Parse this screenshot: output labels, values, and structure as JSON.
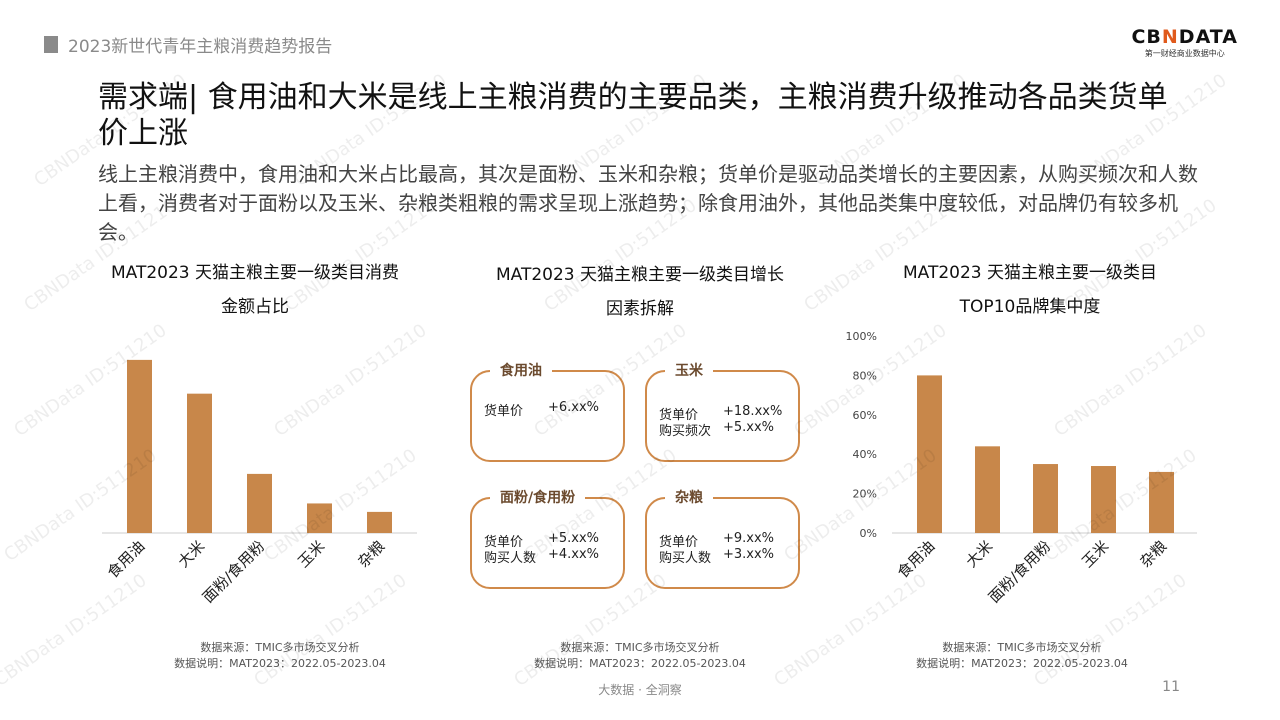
{
  "header": {
    "report": "2023新世代青年主粮消费趋势报告",
    "logo": "CBNDATA",
    "logo_sub": "第一财经商业数据中心"
  },
  "title": "需求端| 食用油和大米是线上主粮消费的主要品类，主粮消费升级推动各品类货单价上涨",
  "description": "线上主粮消费中，食用油和大米占比最高，其次是面粉、玉米和杂粮；货单价是驱动品类增长的主要因素，从购买频次和人数上看，消费者对于面粉以及玉米、杂粮类粗粮的需求呈现上涨趋势；除食用油外，其他品类集中度较低，对品牌仍有较多机会。",
  "chart_data": [
    {
      "type": "bar",
      "title": "MAT2023 天猫主粮主要一级类目消费金额占比",
      "categories": [
        "食用油",
        "大米",
        "面粉/食用粉",
        "玉米",
        "杂粮"
      ],
      "values": [
        41,
        33,
        14,
        7,
        5
      ],
      "ylim": [
        0,
        45
      ],
      "grid": false,
      "note": "无坐标轴，数值为按柱高估算"
    },
    {
      "type": "bar",
      "title": "MAT2023 天猫主粮主要一级类目TOP10品牌集中度",
      "categories": [
        "食用油",
        "大米",
        "面粉/食用粉",
        "玉米",
        "杂粮"
      ],
      "values": [
        80,
        44,
        35,
        34,
        31
      ],
      "ylim": [
        0,
        100
      ],
      "yticks": [
        "0%",
        "20%",
        "40%",
        "60%",
        "80%",
        "100%"
      ],
      "grid": false
    }
  ],
  "middle": {
    "title": "MAT2023 天猫主粮主要一级类目增长因素拆解",
    "boxes": [
      {
        "name": "食用油",
        "rows": [
          {
            "k": "货单价",
            "v": "+6.xx%"
          }
        ]
      },
      {
        "name": "玉米",
        "rows": [
          {
            "k": "货单价",
            "v": "+18.xx%"
          },
          {
            "k": "购买频次",
            "v": "+5.xx%"
          }
        ]
      },
      {
        "name": "面粉/食用粉",
        "rows": [
          {
            "k": "货单价",
            "v": "+5.xx%"
          },
          {
            "k": "购买人数",
            "v": "+4.xx%"
          }
        ]
      },
      {
        "name": "杂粮",
        "rows": [
          {
            "k": "货单价",
            "v": "+9.xx%"
          },
          {
            "k": "购买人数",
            "v": "+3.xx%"
          }
        ]
      }
    ]
  },
  "source": {
    "line1": "数据来源：TMIC多市场交叉分析",
    "line2": "数据说明：MAT2023：2022.05-2023.04"
  },
  "footer": {
    "tagline": "大数据 · 全洞察",
    "page": "11"
  },
  "colors": {
    "bar": "#c8874a",
    "box": "#d08a4a"
  },
  "watermark": "CBNData ID:511210"
}
